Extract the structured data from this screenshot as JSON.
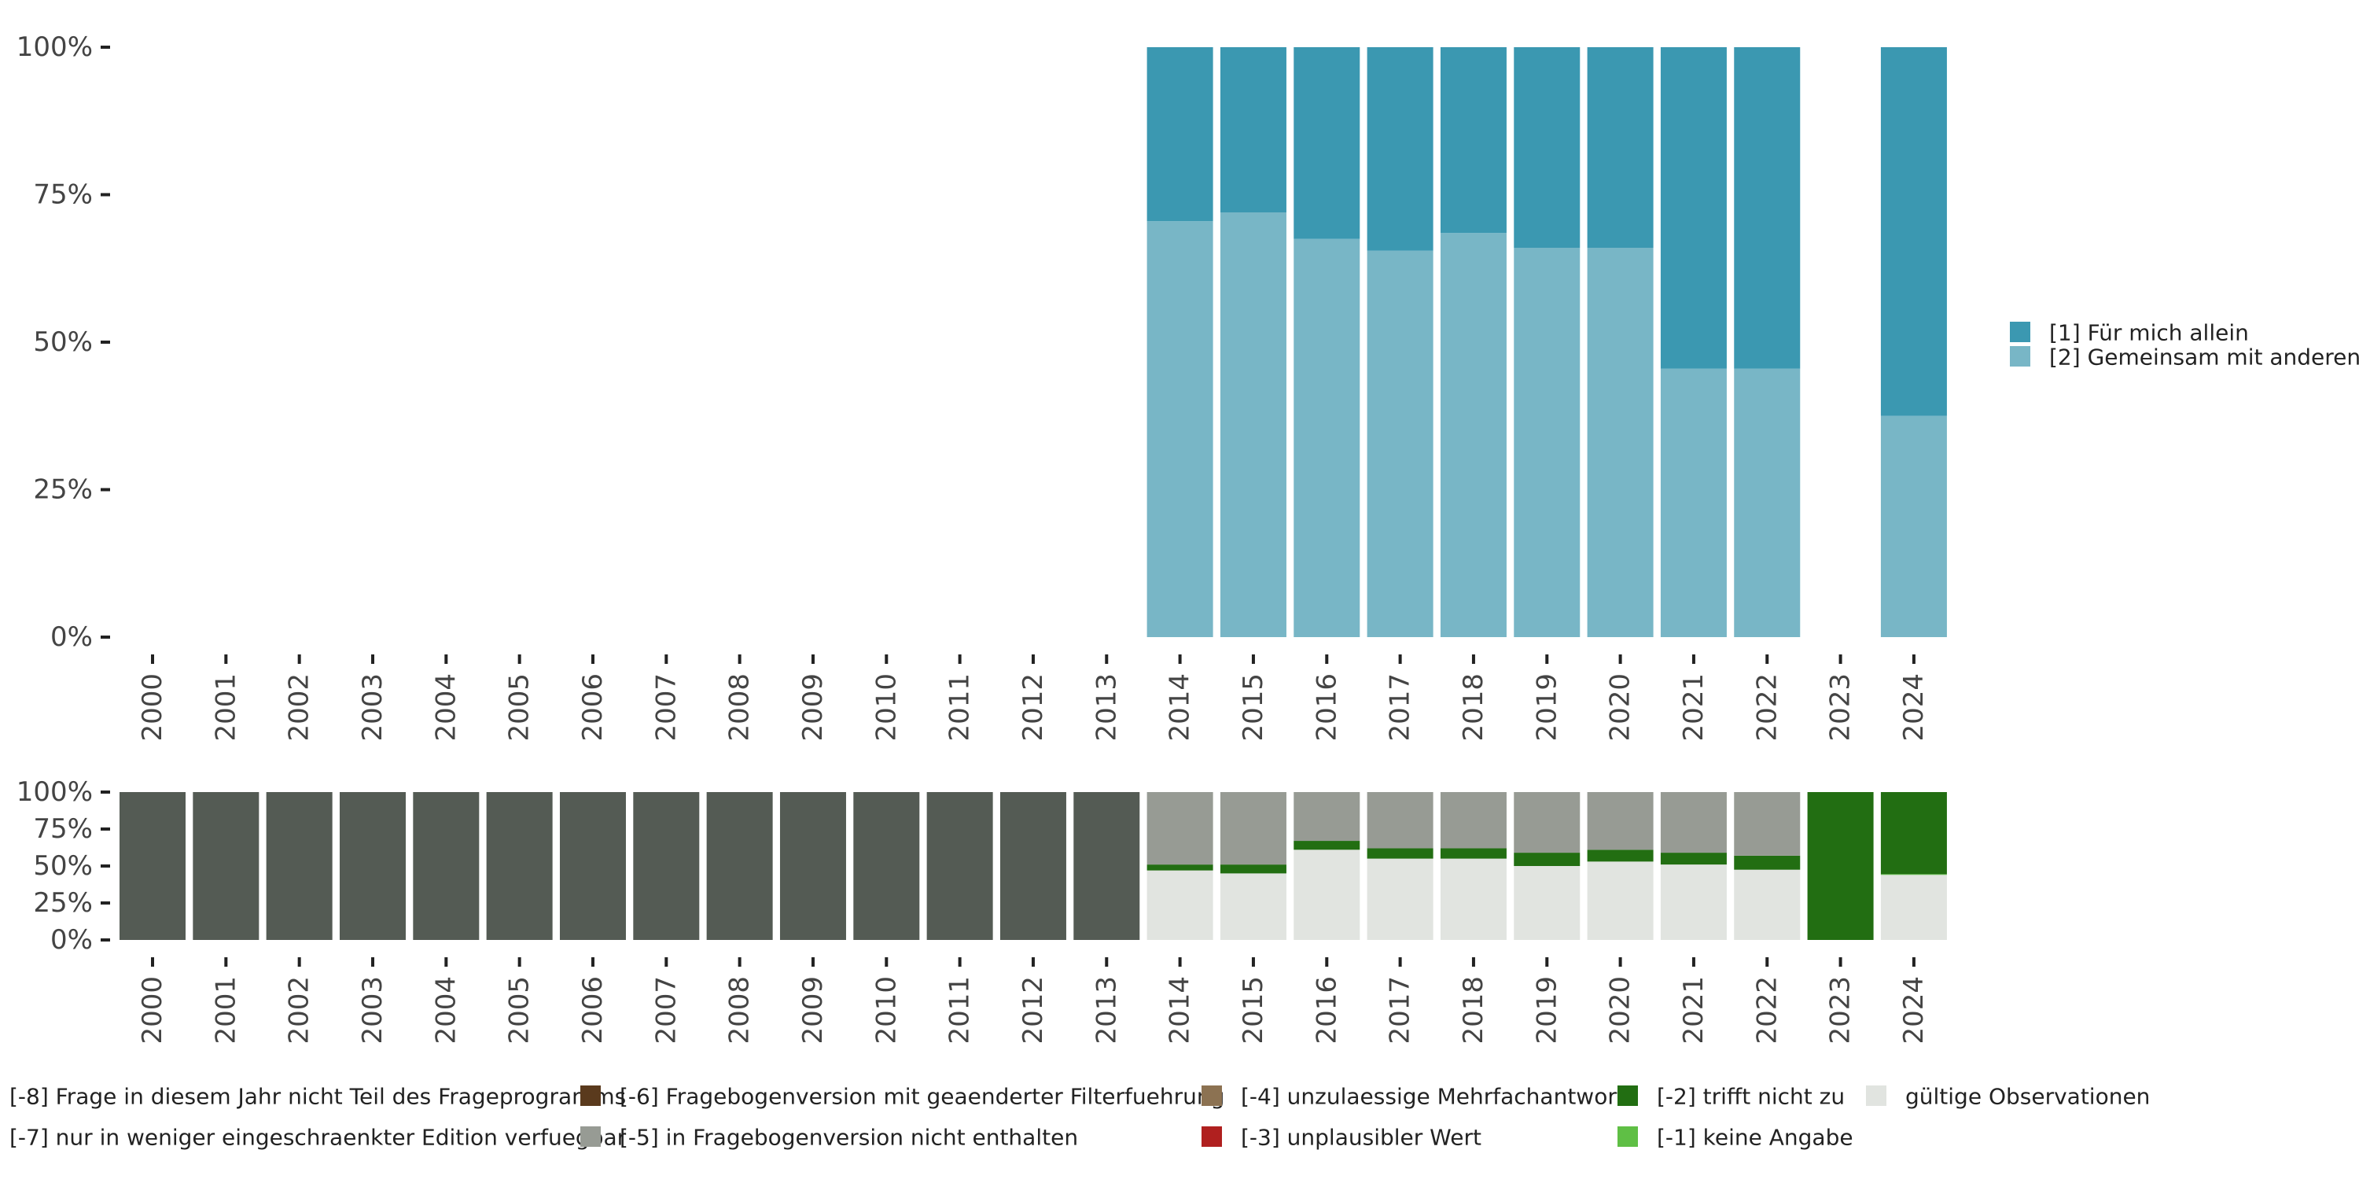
{
  "chart_data": [
    {
      "type": "bar",
      "stacked": true,
      "percent": true,
      "title": "",
      "xlabel": "",
      "ylabel": "",
      "ylim": [
        0,
        100
      ],
      "y_ticks": [
        "0%",
        "25%",
        "50%",
        "75%",
        "100%"
      ],
      "categories": [
        "2000",
        "2001",
        "2002",
        "2003",
        "2004",
        "2005",
        "2006",
        "2007",
        "2008",
        "2009",
        "2010",
        "2011",
        "2012",
        "2013",
        "2014",
        "2015",
        "2016",
        "2017",
        "2018",
        "2019",
        "2020",
        "2021",
        "2022",
        "2023",
        "2024"
      ],
      "series": [
        {
          "name": "[2] Gemeinsam mit anderen",
          "color": "#78b6c6",
          "values": [
            null,
            null,
            null,
            null,
            null,
            null,
            null,
            null,
            null,
            null,
            null,
            null,
            null,
            null,
            70.5,
            72,
            67.5,
            65.5,
            68.5,
            66,
            66,
            45.5,
            45.5,
            null,
            37.5
          ]
        },
        {
          "name": "[1] Für mich allein",
          "color": "#3b98b1",
          "values": [
            null,
            null,
            null,
            null,
            null,
            null,
            null,
            null,
            null,
            null,
            null,
            null,
            null,
            null,
            29.5,
            28,
            32.5,
            34.5,
            31.5,
            34,
            34,
            54.5,
            54.5,
            null,
            62.5
          ]
        }
      ],
      "legend_position": "right",
      "grid": false
    },
    {
      "type": "bar",
      "stacked": true,
      "percent": true,
      "title": "",
      "xlabel": "",
      "ylabel": "",
      "ylim": [
        0,
        100
      ],
      "y_ticks": [
        "0%",
        "25%",
        "50%",
        "75%",
        "100%"
      ],
      "categories": [
        "2000",
        "2001",
        "2002",
        "2003",
        "2004",
        "2005",
        "2006",
        "2007",
        "2008",
        "2009",
        "2010",
        "2011",
        "2012",
        "2013",
        "2014",
        "2015",
        "2016",
        "2017",
        "2018",
        "2019",
        "2020",
        "2021",
        "2022",
        "2023",
        "2024"
      ],
      "series": [
        {
          "name": "gültige Observationen",
          "color": "#e1e4e0",
          "values": [
            0,
            0,
            0,
            0,
            0,
            0,
            0,
            0,
            0,
            0,
            0,
            0,
            0,
            0,
            47,
            45,
            61,
            55,
            55,
            50,
            53,
            51,
            47.5,
            0,
            44
          ]
        },
        {
          "name": "[-1] keine Angabe",
          "color": "#5fbf45",
          "values": [
            0,
            0,
            0,
            0,
            0,
            0,
            0,
            0,
            0,
            0,
            0,
            0,
            0,
            0,
            0,
            0,
            0,
            0,
            0,
            0,
            0,
            0,
            0,
            0,
            0.5
          ]
        },
        {
          "name": "[-2] trifft nicht zu",
          "color": "#226e12",
          "values": [
            0,
            0,
            0,
            0,
            0,
            0,
            0,
            0,
            0,
            0,
            0,
            0,
            0,
            0,
            4,
            6,
            6,
            7,
            7,
            9,
            8,
            8,
            9.5,
            100,
            55.5
          ]
        },
        {
          "name": "[-5] in Fragebogenversion nicht enthalten",
          "color": "#979b94",
          "values": [
            0,
            0,
            0,
            0,
            0,
            0,
            0,
            0,
            0,
            0,
            0,
            0,
            0,
            0,
            49,
            49,
            33,
            38,
            38,
            41,
            39,
            41,
            43,
            0,
            0
          ]
        },
        {
          "name": "[-8] Frage in diesem Jahr nicht Teil des Frageprogramms",
          "color": "#545b54",
          "values": [
            100,
            100,
            100,
            100,
            100,
            100,
            100,
            100,
            100,
            100,
            100,
            100,
            100,
            100,
            0,
            0,
            0,
            0,
            0,
            0,
            0,
            0,
            0,
            0,
            0
          ]
        }
      ],
      "legend_position": "bottom",
      "grid": false
    }
  ],
  "bottom_legend": [
    {
      "label": "[-8] Frage in diesem Jahr nicht Teil des Frageprogramms",
      "color": "#545b54"
    },
    {
      "label": "[-7] nur in weniger eingeschraenkter Edition verfuegbar",
      "color": "#3d4a3f"
    },
    {
      "label": "[-6] Fragebogenversion mit geaenderter Filterfuehrung",
      "color": "#5a3a1d"
    },
    {
      "label": "[-5] in Fragebogenversion nicht enthalten",
      "color": "#979b94"
    },
    {
      "label": "[-4] unzulaessige Mehrfachantwort",
      "color": "#8c7252"
    },
    {
      "label": "[-3] unplausibler Wert",
      "color": "#b0201f"
    },
    {
      "label": "[-2] trifft nicht zu",
      "color": "#226e12"
    },
    {
      "label": "[-1] keine Angabe",
      "color": "#5fbf45"
    },
    {
      "label": "gültige Observationen",
      "color": "#e1e4e0"
    }
  ]
}
